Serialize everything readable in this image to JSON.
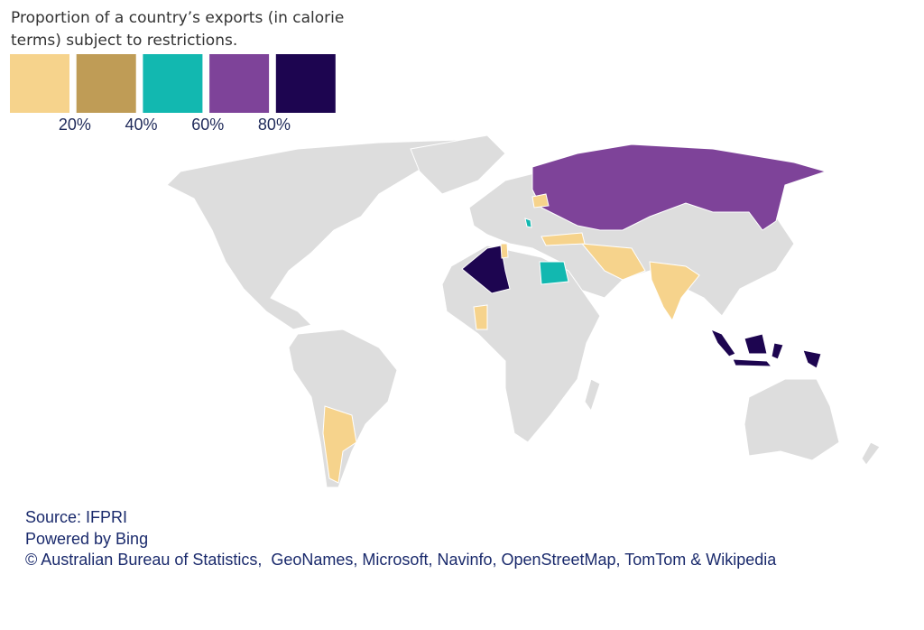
{
  "legend": {
    "title": "Proportion of a country’s exports (in calorie terms) subject to restrictions.",
    "colors": [
      "#f6d38c",
      "#bf9c56",
      "#12b8b0",
      "#7e4399",
      "#1d0550"
    ],
    "labels": [
      "20%",
      "40%",
      "60%",
      "80%"
    ]
  },
  "source": {
    "lines": [
      "Source: IFPRI",
      "Powered by Bing",
      "© Australian Bureau of Statistics,  GeoNames, Microsoft, Navinfo, OpenStreetMap, TomTom & Wikipedia"
    ]
  }
}
